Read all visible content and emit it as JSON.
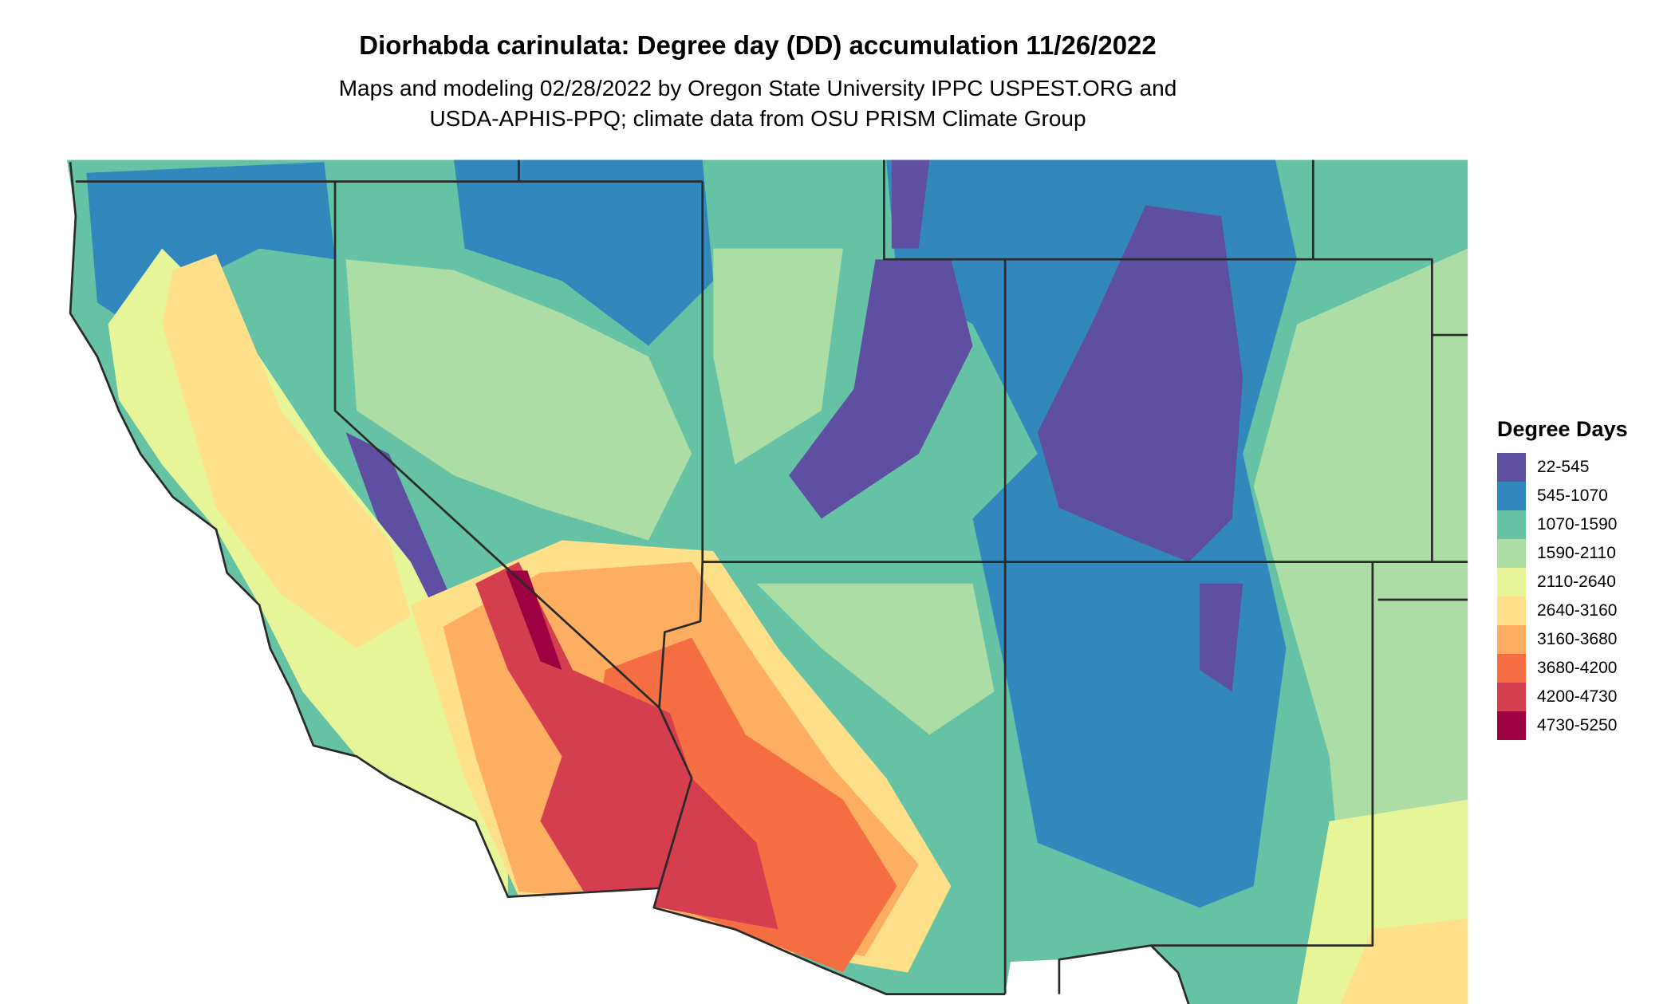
{
  "title": "Diorhabda carinulata: Degree day (DD) accumulation 11/26/2022",
  "subtitle_lines": [
    "Maps and modeling 02/28/2022 by Oregon State University IPPC USPEST.ORG and",
    "USDA-APHIS-PPQ; climate data from OSU PRISM Climate Group"
  ],
  "legend": {
    "title": "Degree Days",
    "items": [
      {
        "label": "22-545",
        "color": "#5e4fa2"
      },
      {
        "label": "545-1070",
        "color": "#3288bd"
      },
      {
        "label": "1070-1590",
        "color": "#66c2a5"
      },
      {
        "label": "1590-2110",
        "color": "#abdda4"
      },
      {
        "label": "2110-2640",
        "color": "#e6f598"
      },
      {
        "label": "2640-3160",
        "color": "#fee08b"
      },
      {
        "label": "3160-3680",
        "color": "#fdae61"
      },
      {
        "label": "3680-4200",
        "color": "#f46d43"
      },
      {
        "label": "4200-4730",
        "color": "#d53e4f"
      },
      {
        "label": "4730-5250",
        "color": "#9e0142"
      }
    ]
  }
}
